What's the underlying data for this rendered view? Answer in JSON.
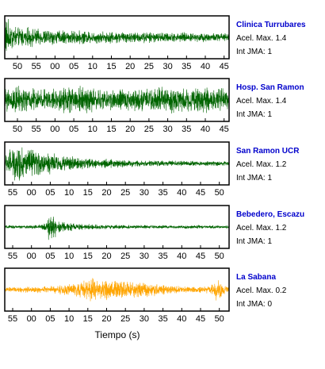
{
  "chart_data": {
    "type": "line",
    "xlabel": "Tiempo (s)",
    "panels": [
      {
        "name": "Clinica Turrubares",
        "accel_label": "Acel. Max. 1.4",
        "jma_label": "Int JMA: 1",
        "acel_max": 1.4,
        "int_jma": 1,
        "color": "#006400",
        "show_ticks": true,
        "tick_labels": [
          "50",
          "55",
          "00",
          "05",
          "10",
          "15",
          "20",
          "25",
          "30",
          "35",
          "40",
          "45"
        ],
        "envelope": {
          "t": [
            0,
            0.4,
            1,
            3,
            8,
            15,
            25,
            35,
            43,
            47
          ],
          "a": [
            0.8,
            1.0,
            0.75,
            0.55,
            0.42,
            0.35,
            0.3,
            0.25,
            0.24,
            0.22
          ]
        }
      },
      {
        "name": "Hosp. San Ramon",
        "accel_label": "Acel. Max. 1.4",
        "jma_label": "Int JMA: 1",
        "acel_max": 1.4,
        "int_jma": 1,
        "color": "#006400",
        "show_ticks": true,
        "tick_labels": [
          "50",
          "55",
          "00",
          "05",
          "10",
          "15",
          "20",
          "25",
          "30",
          "35",
          "40",
          "45"
        ],
        "envelope": {
          "t": [
            0,
            2,
            5,
            10,
            15,
            20,
            25,
            30,
            35,
            40,
            47
          ],
          "a": [
            0.6,
            0.7,
            0.65,
            0.55,
            0.75,
            0.6,
            0.55,
            0.6,
            0.7,
            0.65,
            0.6
          ]
        }
      },
      {
        "name": "San Ramon UCR",
        "accel_label": "Acel. Max. 1.2",
        "jma_label": "Int JMA: 1",
        "acel_max": 1.2,
        "int_jma": 1,
        "color": "#006400",
        "show_ticks": true,
        "tick_labels": [
          "55",
          "00",
          "05",
          "10",
          "15",
          "20",
          "25",
          "30",
          "35",
          "40",
          "45",
          "50"
        ],
        "envelope": {
          "t": [
            0,
            1.5,
            3,
            5,
            8,
            12,
            20,
            30,
            47
          ],
          "a": [
            0.5,
            0.85,
            0.95,
            0.8,
            0.6,
            0.4,
            0.25,
            0.15,
            0.12
          ]
        }
      },
      {
        "name": "Bebedero, Escazu",
        "accel_label": "Acel. Max. 1.2",
        "jma_label": "Int JMA: 1",
        "acel_max": 1.2,
        "int_jma": 1,
        "color": "#006400",
        "show_ticks": true,
        "tick_labels": [
          "55",
          "00",
          "05",
          "10",
          "15",
          "20",
          "25",
          "30",
          "35",
          "40",
          "45",
          "50"
        ],
        "envelope": {
          "t": [
            0,
            7,
            8.5,
            9.5,
            11,
            14,
            20,
            30,
            47
          ],
          "a": [
            0.08,
            0.1,
            0.25,
            0.95,
            0.35,
            0.2,
            0.12,
            0.09,
            0.08
          ]
        }
      },
      {
        "name": "La Sabana",
        "accel_label": "Acel. Max. 0.2",
        "jma_label": "Int JMA: 0",
        "acel_max": 0.2,
        "int_jma": 0,
        "color": "#ffa500",
        "show_ticks": true,
        "tick_labels": [
          "55",
          "00",
          "05",
          "10",
          "15",
          "20",
          "25",
          "30",
          "35",
          "40",
          "45",
          "50"
        ],
        "envelope": {
          "t": [
            0,
            10,
            15,
            18,
            22,
            26,
            30,
            35,
            40,
            43,
            44.5,
            46,
            47
          ],
          "a": [
            0.12,
            0.2,
            0.35,
            0.6,
            0.55,
            0.45,
            0.4,
            0.22,
            0.15,
            0.2,
            0.65,
            0.25,
            0.15
          ]
        }
      }
    ]
  }
}
